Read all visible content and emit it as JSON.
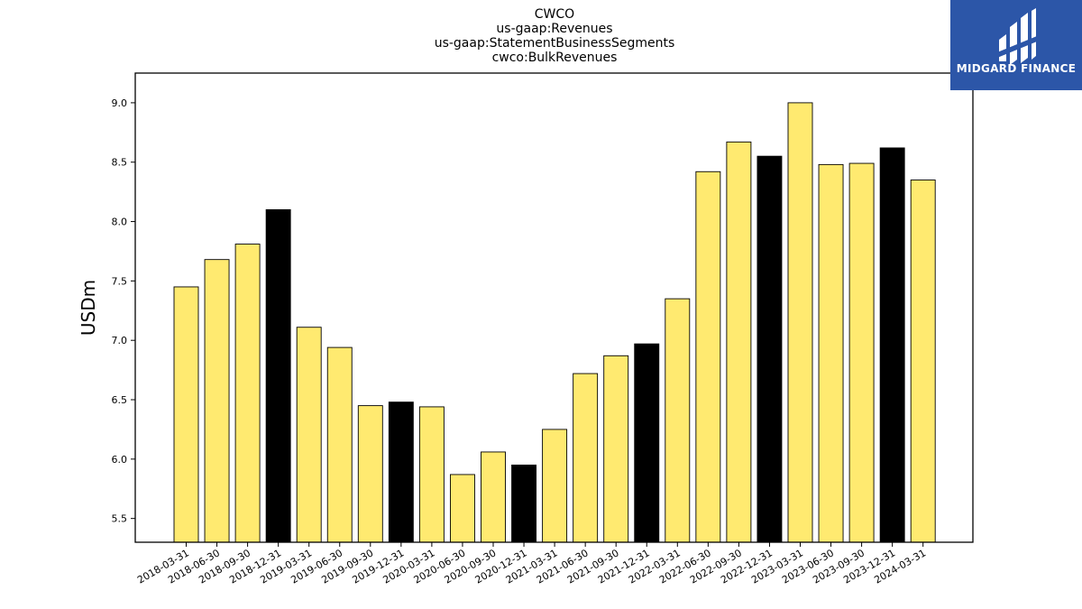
{
  "chart_data": {
    "type": "bar",
    "title_lines": [
      "CWCO",
      "us-gaap:Revenues",
      "us-gaap:StatementBusinessSegments",
      "cwco:BulkRevenues"
    ],
    "xlabel": "",
    "ylabel": "USDm",
    "ylim": [
      5.3,
      9.25
    ],
    "yticks": [
      "5.5",
      "6.0",
      "6.5",
      "7.0",
      "7.5",
      "8.0",
      "8.5",
      "9.0"
    ],
    "grid": false,
    "categories": [
      "2018-03-31",
      "2018-06-30",
      "2018-09-30",
      "2018-12-31",
      "2019-03-31",
      "2019-06-30",
      "2019-09-30",
      "2019-12-31",
      "2020-03-31",
      "2020-06-30",
      "2020-09-30",
      "2020-12-31",
      "2021-03-31",
      "2021-06-30",
      "2021-09-30",
      "2021-12-31",
      "2022-03-31",
      "2022-06-30",
      "2022-09-30",
      "2022-12-31",
      "2023-03-31",
      "2023-06-30",
      "2023-09-30",
      "2023-12-31",
      "2024-03-31"
    ],
    "values": [
      7.45,
      7.68,
      7.81,
      8.1,
      7.11,
      6.94,
      6.45,
      6.48,
      6.44,
      5.87,
      6.06,
      5.95,
      6.25,
      6.72,
      6.87,
      6.97,
      7.35,
      8.42,
      8.67,
      8.55,
      9.0,
      8.48,
      8.49,
      8.62,
      8.35
    ],
    "highlight_dates": [
      "2018-12-31",
      "2019-12-31",
      "2020-12-31",
      "2021-12-31",
      "2022-12-31",
      "2023-12-31"
    ],
    "colors": {
      "bar": "#ffea70",
      "highlight": "#000000",
      "edge": "#000000"
    }
  },
  "logo": {
    "text": "MIDGARD FINANCE",
    "background": "#2c56a8"
  }
}
